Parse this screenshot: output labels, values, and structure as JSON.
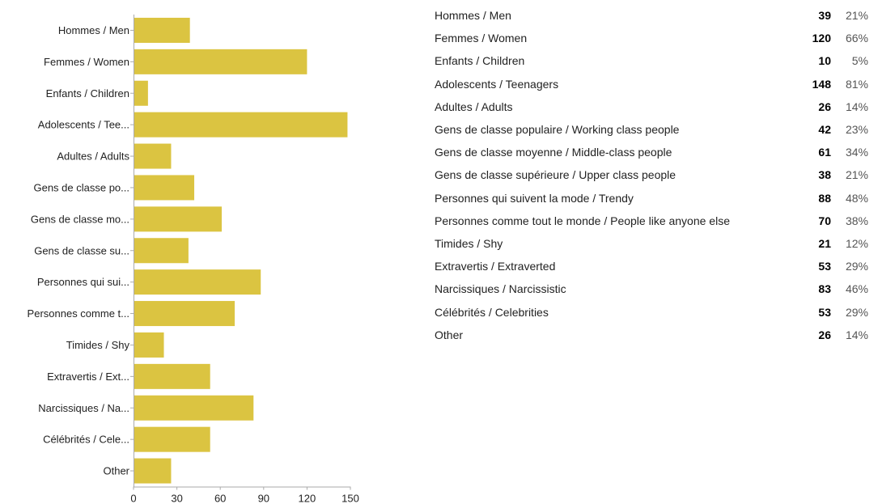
{
  "chart_data": {
    "type": "bar",
    "orientation": "horizontal",
    "bar_color": "#dbc441",
    "axis_color": "#aaaaaa",
    "categories": [
      "Hommes / Men",
      "Femmes / Women",
      "Enfants / Children",
      "Adolescents / Tee...",
      "Adultes / Adults",
      "Gens de classe po...",
      "Gens de classe mo...",
      "Gens de classe su...",
      "Personnes qui sui...",
      "Personnes comme t...",
      "Timides / Shy",
      "Extravertis / Ext...",
      "Narcissiques / Na...",
      "Célébrités / Cele...",
      "Other"
    ],
    "values": [
      39,
      120,
      10,
      148,
      26,
      42,
      61,
      38,
      88,
      70,
      21,
      53,
      83,
      53,
      26
    ],
    "xlim": [
      0,
      150
    ],
    "xticks": [
      "0",
      "30",
      "60",
      "90",
      "120",
      "150"
    ],
    "grid": false
  },
  "summary": {
    "rows": [
      {
        "label": "Hommes / Men",
        "count": "39",
        "percent": "21%"
      },
      {
        "label": "Femmes / Women",
        "count": "120",
        "percent": "66%"
      },
      {
        "label": "Enfants / Children",
        "count": "10",
        "percent": "5%"
      },
      {
        "label": "Adolescents / Teenagers",
        "count": "148",
        "percent": "81%"
      },
      {
        "label": "Adultes / Adults",
        "count": "26",
        "percent": "14%"
      },
      {
        "label": "Gens de classe populaire / Working class people",
        "count": "42",
        "percent": "23%"
      },
      {
        "label": "Gens de classe moyenne / Middle-class people",
        "count": "61",
        "percent": "34%"
      },
      {
        "label": "Gens de classe supérieure / Upper class people",
        "count": "38",
        "percent": "21%"
      },
      {
        "label": "Personnes qui suivent la mode / Trendy",
        "count": "88",
        "percent": "48%"
      },
      {
        "label": "Personnes comme tout le monde / People like anyone else",
        "count": "70",
        "percent": "38%"
      },
      {
        "label": "Timides / Shy",
        "count": "21",
        "percent": "12%"
      },
      {
        "label": "Extravertis / Extraverted",
        "count": "53",
        "percent": "29%"
      },
      {
        "label": "Narcissiques / Narcissistic",
        "count": "83",
        "percent": "46%"
      },
      {
        "label": "Célébrités / Celebrities",
        "count": "53",
        "percent": "29%"
      },
      {
        "label": "Other",
        "count": "26",
        "percent": "14%"
      }
    ]
  }
}
